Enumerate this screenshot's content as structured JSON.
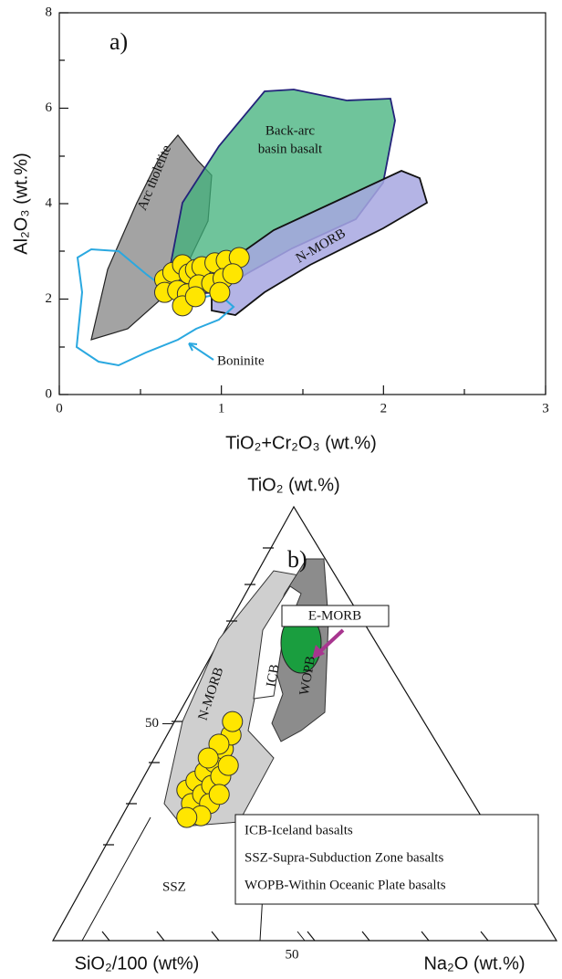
{
  "chart_data": [
    {
      "type": "scatter",
      "panel_label": "a)",
      "x_label": "TiO₂+Cr₂O₃ (wt.%)",
      "y_label": "Al₂O₃ (wt.%)",
      "xlim": [
        0,
        3
      ],
      "ylim": [
        0,
        8
      ],
      "xticks": [
        0,
        1,
        2,
        3
      ],
      "yticks": [
        0,
        2,
        4,
        6,
        8
      ],
      "color": "#ffe600",
      "x": [
        0.65,
        0.7,
        0.76,
        0.8,
        0.84,
        0.88,
        0.96,
        1.03,
        1.11,
        0.65,
        0.73,
        0.79,
        0.86,
        0.94,
        1.01,
        1.07,
        0.76,
        0.84,
        0.99
      ],
      "y": [
        2.41,
        2.56,
        2.72,
        2.53,
        2.62,
        2.68,
        2.76,
        2.81,
        2.87,
        2.14,
        2.18,
        2.11,
        2.3,
        2.33,
        2.43,
        2.53,
        1.86,
        2.05,
        2.14
      ],
      "annotations": [
        "Arc tholeiite",
        "Back-arc",
        "basin basalt",
        "N-MORB",
        "Boninite"
      ]
    },
    {
      "type": "ternary",
      "panel_label": "b)",
      "top_label": "TiO₂ (wt.%)",
      "left_label": "SiO₂/100 (wt%)",
      "right_label": "Na₂O (wt.%)",
      "left_ticks": [
        50
      ],
      "bottom_ticks": [
        50
      ],
      "color": "#ffe600",
      "top": [
        0.347,
        0.368,
        0.389,
        0.411,
        0.442,
        0.474,
        0.505,
        0.316,
        0.337,
        0.358,
        0.379,
        0.404,
        0.316,
        0.337,
        0.288,
        0.284,
        0.453,
        0.421
      ],
      "right": [
        0.1,
        0.108,
        0.116,
        0.124,
        0.127,
        0.127,
        0.115,
        0.124,
        0.136,
        0.144,
        0.152,
        0.155,
        0.16,
        0.169,
        0.156,
        0.13,
        0.113,
        0.107
      ],
      "annotations": [
        "E-MORB",
        "N-MORB",
        "ICB",
        "WOPB",
        "SSZ"
      ],
      "notes": [
        "ICB-Iceland basalts",
        "SSZ-Supra-Subduction Zone basalts",
        "WOPB-Within Oceanic Plate basalts"
      ]
    }
  ]
}
